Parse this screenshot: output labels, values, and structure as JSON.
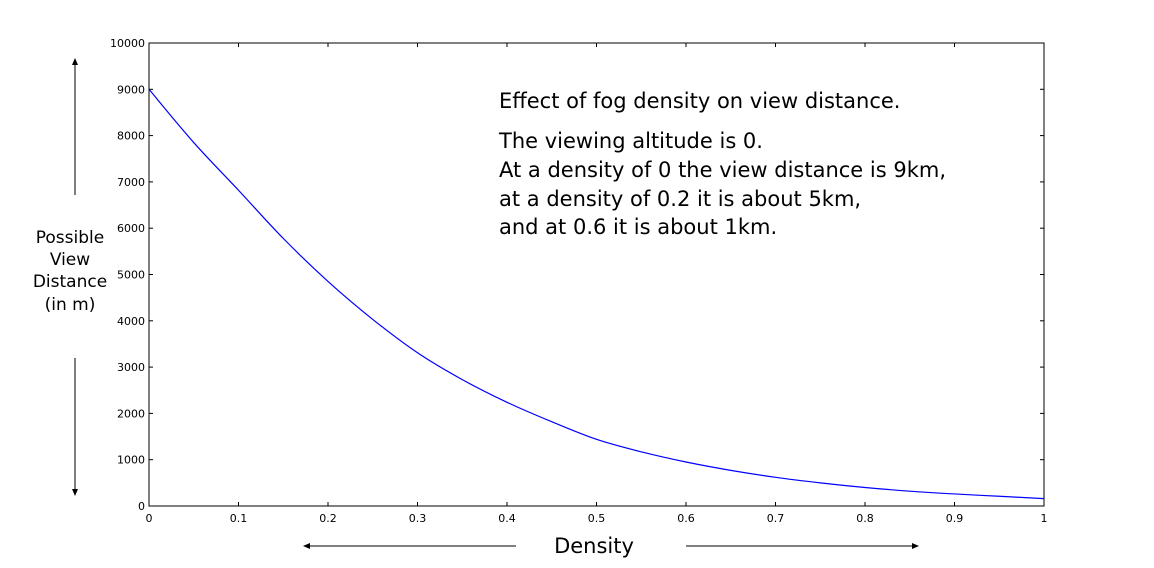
{
  "chart_data": {
    "type": "line",
    "title": "",
    "xlabel": "Density",
    "ylabel_lines": [
      "Possible",
      "View",
      "Distance",
      "(in m)"
    ],
    "xlim": [
      0,
      1
    ],
    "ylim": [
      0,
      10000
    ],
    "grid": false,
    "x_ticks": [
      "0",
      "0.1",
      "0.2",
      "0.3",
      "0.4",
      "0.5",
      "0.6",
      "0.7",
      "0.8",
      "0.9",
      "1"
    ],
    "y_ticks": [
      "0",
      "1000",
      "2000",
      "3000",
      "4000",
      "5000",
      "6000",
      "7000",
      "8000",
      "9000",
      "10000"
    ],
    "line_color": "#0000ff",
    "series": [
      {
        "x": [
          0,
          0.05,
          0.1,
          0.15,
          0.2,
          0.25,
          0.3,
          0.35,
          0.4,
          0.45,
          0.5,
          0.55,
          0.6,
          0.65,
          0.7,
          0.75,
          0.8,
          0.85,
          0.9,
          0.95,
          1.0
        ],
        "values": [
          9000,
          7850,
          6820,
          5780,
          4850,
          4030,
          3310,
          2730,
          2240,
          1820,
          1440,
          1170,
          950,
          770,
          620,
          500,
          400,
          320,
          260,
          210,
          160
        ]
      }
    ],
    "annotation": {
      "title": "Effect of fog density on view distance.",
      "lines": [
        "The viewing altitude is 0.",
        "At a density of 0 the view distance is 9km,",
        "at a density of 0.2 it is about 5km,",
        "and at 0.6 it is about 1km."
      ]
    }
  }
}
